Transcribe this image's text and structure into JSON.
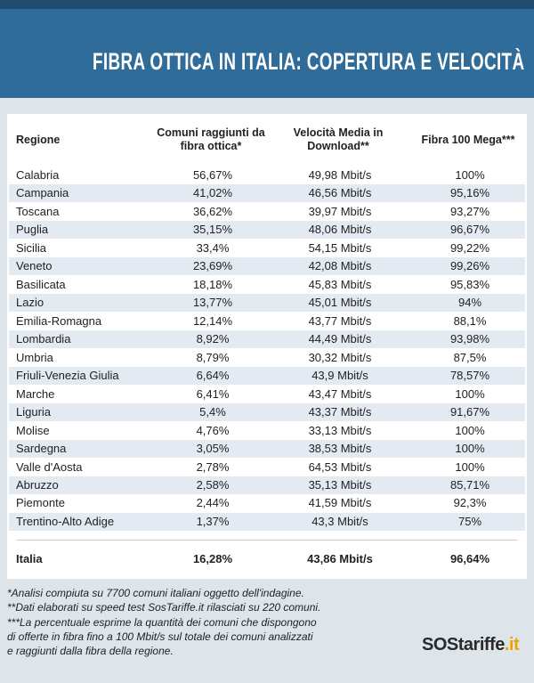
{
  "header": {
    "title": "FIBRA OTTICA IN ITALIA: COPERTURA E VELOCITÀ"
  },
  "table": {
    "columns": [
      "Regione",
      "Comuni raggiunti da fibra ottica*",
      "Velocità Media in Download**",
      "Fibra 100 Mega***"
    ],
    "rows": [
      [
        "Calabria",
        "56,67%",
        "49,98 Mbit/s",
        "100%"
      ],
      [
        "Campania",
        "41,02%",
        "46,56 Mbit/s",
        "95,16%"
      ],
      [
        "Toscana",
        "36,62%",
        "39,97 Mbit/s",
        "93,27%"
      ],
      [
        "Puglia",
        "35,15%",
        "48,06 Mbit/s",
        "96,67%"
      ],
      [
        "Sicilia",
        "33,4%",
        "54,15 Mbit/s",
        "99,22%"
      ],
      [
        "Veneto",
        "23,69%",
        "42,08 Mbit/s",
        "99,26%"
      ],
      [
        "Basilicata",
        "18,18%",
        "45,83 Mbit/s",
        "95,83%"
      ],
      [
        "Lazio",
        "13,77%",
        "45,01 Mbit/s",
        "94%"
      ],
      [
        "Emilia-Romagna",
        "12,14%",
        "43,77 Mbit/s",
        "88,1%"
      ],
      [
        "Lombardia",
        "8,92%",
        "44,49 Mbit/s",
        "93,98%"
      ],
      [
        "Umbria",
        "8,79%",
        "30,32 Mbit/s",
        "87,5%"
      ],
      [
        "Friuli-Venezia Giulia",
        "6,64%",
        "43,9 Mbit/s",
        "78,57%"
      ],
      [
        "Marche",
        "6,41%",
        "43,47 Mbit/s",
        "100%"
      ],
      [
        "Liguria",
        "5,4%",
        "43,37 Mbit/s",
        "91,67%"
      ],
      [
        "Molise",
        "4,76%",
        "33,13 Mbit/s",
        "100%"
      ],
      [
        "Sardegna",
        "3,05%",
        "38,53 Mbit/s",
        "100%"
      ],
      [
        "Valle d'Aosta",
        "2,78%",
        "64,53 Mbit/s",
        "100%"
      ],
      [
        "Abruzzo",
        "2,58%",
        "35,13 Mbit/s",
        "85,71%"
      ],
      [
        "Piemonte",
        "2,44%",
        "41,59 Mbit/s",
        "92,3%"
      ],
      [
        "Trentino-Alto Adige",
        "1,37%",
        "43,3 Mbit/s",
        "75%"
      ]
    ],
    "total": [
      "Italia",
      "16,28%",
      "43,86 Mbit/s",
      "96,64%"
    ]
  },
  "footnotes": [
    "*Analisi compiuta su 7700 comuni italiani oggetto dell'indagine.",
    "**Dati elaborati su speed test SosTariffe.it rilasciati su 220 comuni.",
    "***La percentuale esprime la quantità dei comuni che dispongono",
    "di offerte in fibra fino a 100 Mbit/s sul totale dei comuni analizzati",
    "e raggiunti dalla fibra della regione."
  ],
  "logo": [
    "SOS",
    "tariffe",
    ".it"
  ]
}
